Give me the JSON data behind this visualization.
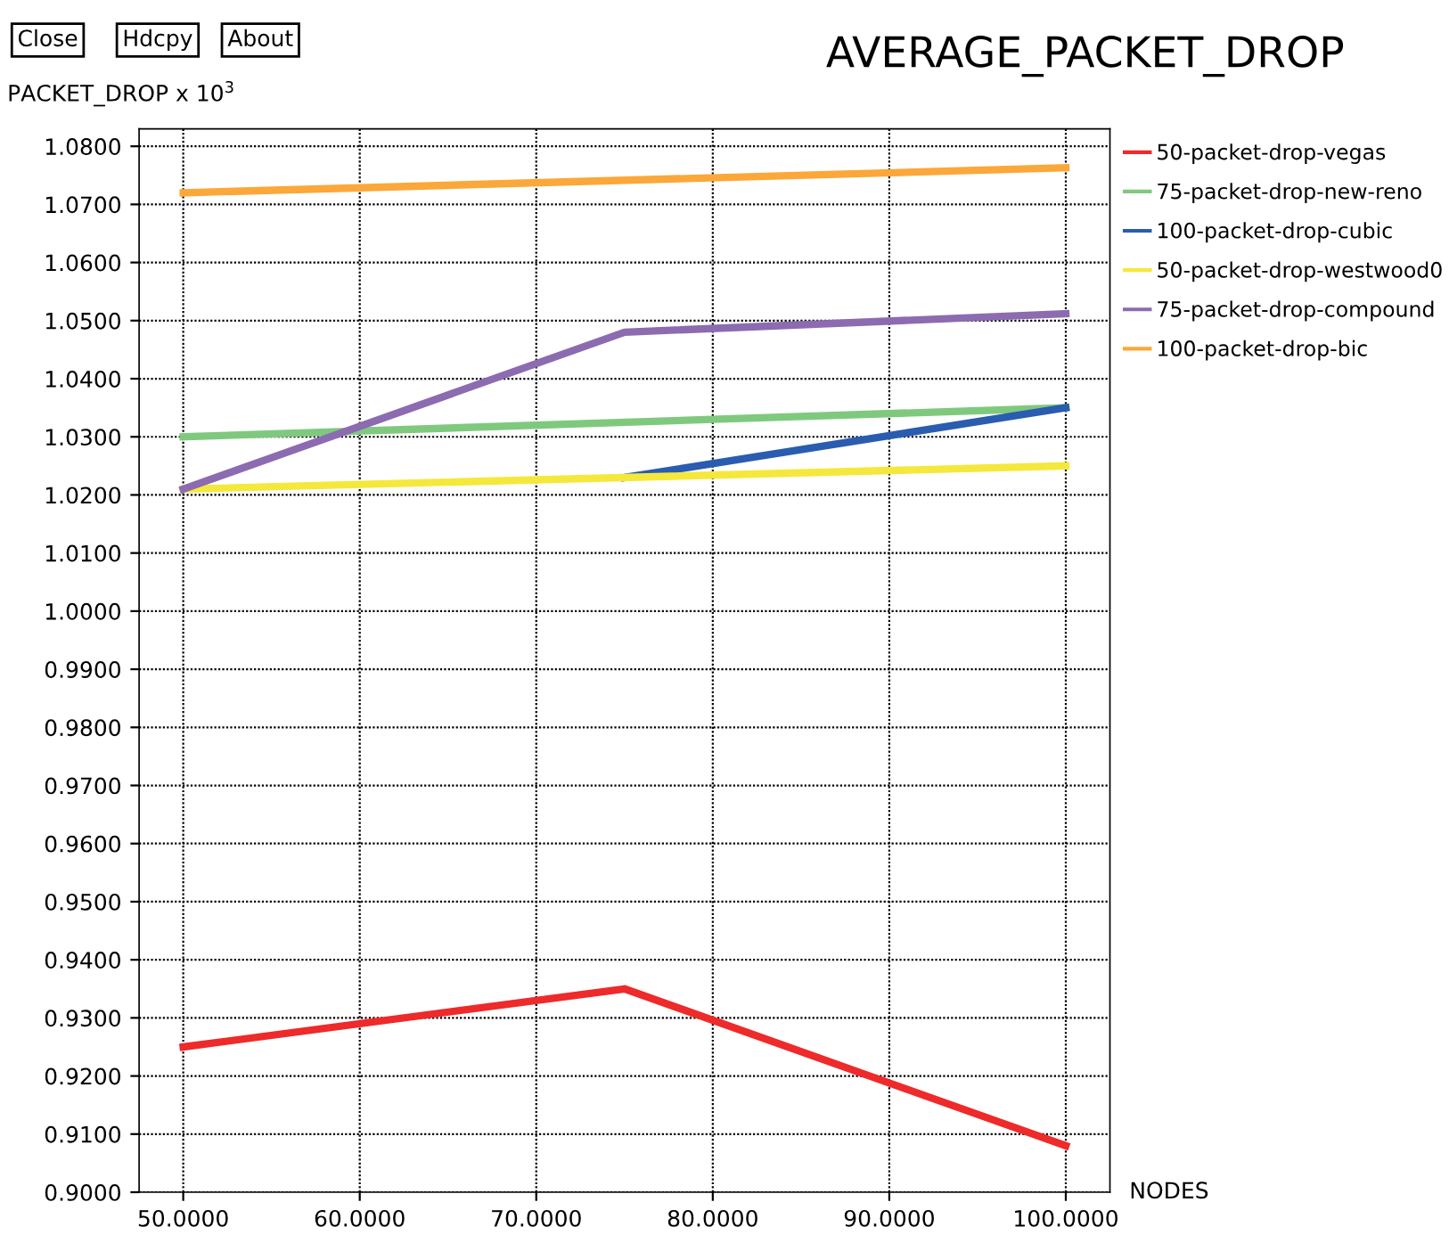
{
  "chart_data": {
    "type": "line",
    "title": "AVERAGE_PACKET_DROP",
    "ylabel": "PACKET_DROP x 10$^{3}$",
    "xlabel": "NODES",
    "annotations": [
      "Close",
      "Hdcpy",
      "About"
    ],
    "xlim": [
      47.5,
      102.5
    ],
    "ylim": [
      0.9,
      1.083
    ],
    "xticks": [
      {
        "value": 50,
        "label": "50.0000"
      },
      {
        "value": 60,
        "label": "60.0000"
      },
      {
        "value": 70,
        "label": "70.0000"
      },
      {
        "value": 80,
        "label": "80.0000"
      },
      {
        "value": 90,
        "label": "90.0000"
      },
      {
        "value": 100,
        "label": "100.0000"
      }
    ],
    "yticks": [
      {
        "value": 0.9,
        "label": "0.9000"
      },
      {
        "value": 0.91,
        "label": "0.9100"
      },
      {
        "value": 0.92,
        "label": "0.9200"
      },
      {
        "value": 0.93,
        "label": "0.9300"
      },
      {
        "value": 0.94,
        "label": "0.9400"
      },
      {
        "value": 0.95,
        "label": "0.9500"
      },
      {
        "value": 0.96,
        "label": "0.9600"
      },
      {
        "value": 0.97,
        "label": "0.9700"
      },
      {
        "value": 0.98,
        "label": "0.9800"
      },
      {
        "value": 0.99,
        "label": "0.9900"
      },
      {
        "value": 1.0,
        "label": "1.0000"
      },
      {
        "value": 1.01,
        "label": "1.0100"
      },
      {
        "value": 1.02,
        "label": "1.0200"
      },
      {
        "value": 1.03,
        "label": "1.0300"
      },
      {
        "value": 1.04,
        "label": "1.0400"
      },
      {
        "value": 1.05,
        "label": "1.0500"
      },
      {
        "value": 1.06,
        "label": "1.0600"
      },
      {
        "value": 1.07,
        "label": "1.0700"
      },
      {
        "value": 1.08,
        "label": "1.0800"
      }
    ],
    "grid": true,
    "legend": "top right",
    "marker": "none",
    "line_style": "solid",
    "series": [
      {
        "name": "50-packet-drop-vegas",
        "color": "#ee2a2a",
        "x": [
          50,
          75,
          100
        ],
        "values": [
          0.925,
          0.935,
          0.908
        ]
      },
      {
        "name": "75-packet-drop-new-reno",
        "color": "#7fc97f",
        "x": [
          50,
          100
        ],
        "values": [
          1.03,
          1.035
        ]
      },
      {
        "name": "100-packet-drop-cubic",
        "color": "#2a5cb0",
        "x": [
          75,
          100
        ],
        "values": [
          1.023,
          1.035
        ]
      },
      {
        "name": "50-packet-drop-westwood0",
        "color": "#f5e83c",
        "x": [
          50,
          100
        ],
        "values": [
          1.021,
          1.025
        ]
      },
      {
        "name": "75-packet-drop-compound",
        "color": "#8c6bb1",
        "x": [
          50,
          75,
          100
        ],
        "values": [
          1.021,
          1.048,
          1.0512
        ]
      },
      {
        "name": "100-packet-drop-bic",
        "color": "#fba73a",
        "x": [
          50,
          100
        ],
        "values": [
          1.072,
          1.0763
        ]
      }
    ]
  }
}
